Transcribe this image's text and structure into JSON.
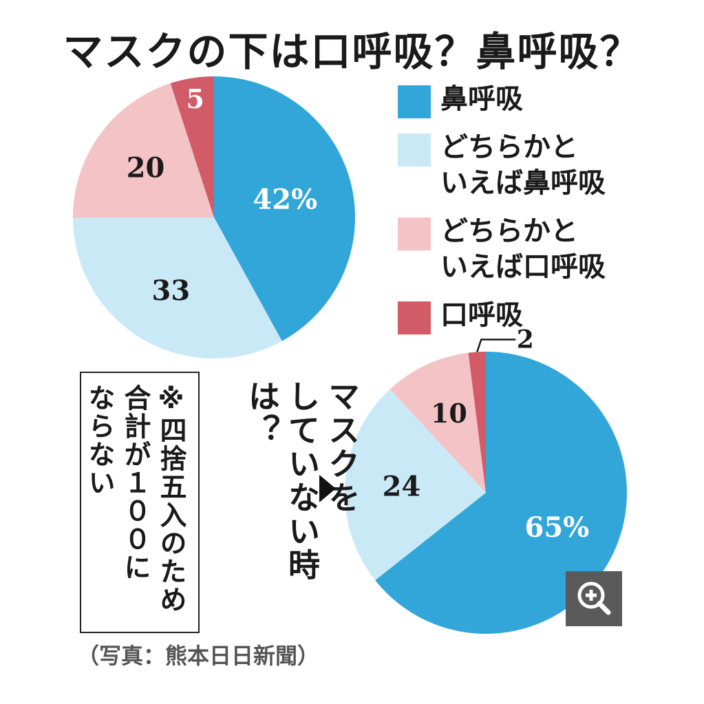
{
  "title": "マスクの下は口呼吸？鼻呼吸？",
  "colors": [
    "#32a6d9",
    "#c9e9f6",
    "#f3c3c6",
    "#d15b67"
  ],
  "legend": [
    {
      "label": "鼻呼吸",
      "color": "#32a6d9"
    },
    {
      "label": "どちらかと\nいえば鼻呼吸",
      "color": "#c9e9f6"
    },
    {
      "label": "どちらかと\nいえば口呼吸",
      "color": "#f3c3c6"
    },
    {
      "label": "口呼吸",
      "color": "#d15b67"
    }
  ],
  "chart_data": [
    {
      "type": "pie",
      "subtitle": "",
      "categories": [
        "鼻呼吸",
        "どちらかといえば鼻呼吸",
        "どちらかといえば口呼吸",
        "口呼吸"
      ],
      "values": [
        42,
        33,
        20,
        5
      ],
      "labels": [
        "42%",
        "33",
        "20",
        "5"
      ]
    },
    {
      "type": "pie",
      "subtitle": "マスクをしていない時は？",
      "categories": [
        "鼻呼吸",
        "どちらかといえば鼻呼吸",
        "どちらかといえば口呼吸",
        "口呼吸"
      ],
      "values": [
        65,
        24,
        10,
        2
      ],
      "labels": [
        "65%",
        "24",
        "10",
        "2"
      ]
    }
  ],
  "note": "※四捨五入のため\n合計が１００に\nならない",
  "mask_question": "マスクを\nしていない時は？",
  "caption": "（写真：熊本日日新聞）",
  "zoom_icon": "zoom-in-icon"
}
